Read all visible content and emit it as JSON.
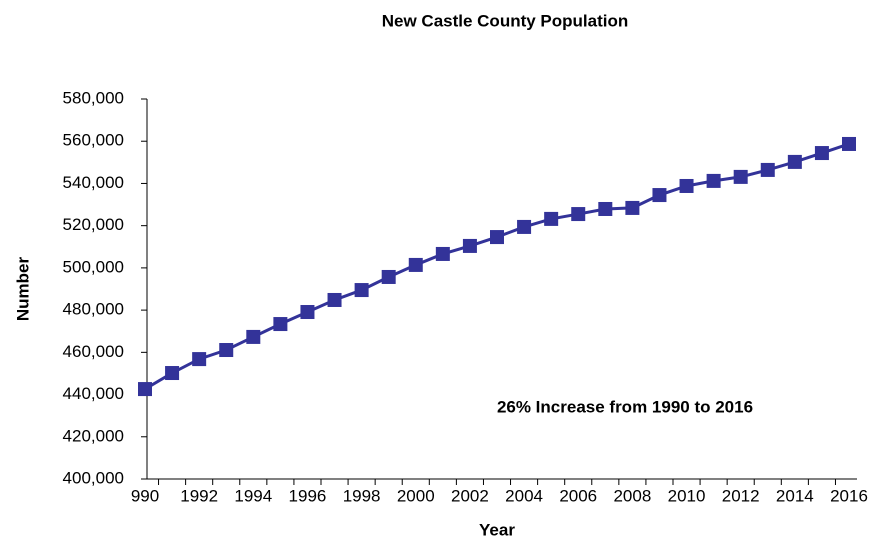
{
  "chart_data": {
    "type": "line",
    "title": "New Castle County Population",
    "x_label": "Year",
    "y_label": "Number",
    "annotation": "26% Increase from 1990 to 2016",
    "categories": [
      "990",
      null,
      "1992",
      null,
      "1994",
      null,
      "1996",
      null,
      "1998",
      null,
      "2000",
      null,
      "2002",
      null,
      "2004",
      null,
      "2006",
      null,
      "2008",
      null,
      "2010",
      null,
      "2012",
      null,
      "2014",
      null,
      "2016"
    ],
    "series": [
      {
        "name": "New Castle County",
        "color": "#333399",
        "values": [
          442600,
          450200,
          456800,
          461100,
          467300,
          473400,
          479100,
          484800,
          489500,
          495700,
          501400,
          506600,
          510400,
          514600,
          519400,
          523200,
          525500,
          527900,
          528400,
          534500,
          538800,
          541200,
          543100,
          546400,
          550200,
          554400,
          558700
        ]
      }
    ],
    "ylim": [
      400000,
      580000
    ],
    "yticks": [
      {
        "value": 400000,
        "label": "400,000"
      },
      {
        "value": 420000,
        "label": "420,000"
      },
      {
        "value": 440000,
        "label": "440,000"
      },
      {
        "value": 460000,
        "label": "460,000"
      },
      {
        "value": 480000,
        "label": "480,000"
      },
      {
        "value": 500000,
        "label": "500,000"
      },
      {
        "value": 520000,
        "label": "520,000"
      },
      {
        "value": 540000,
        "label": "540,000"
      },
      {
        "value": 560000,
        "label": "560,000"
      },
      {
        "value": 580000,
        "label": "580,000"
      }
    ],
    "grid": false,
    "legend": false
  }
}
